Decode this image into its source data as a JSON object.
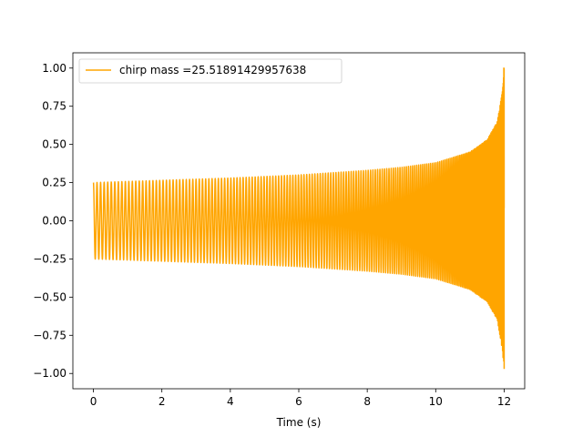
{
  "chart_data": {
    "type": "line",
    "title": "",
    "xlabel": "Time (s)",
    "ylabel": "",
    "xlim": [
      -0.6,
      12.6
    ],
    "ylim": [
      -1.1,
      1.1
    ],
    "x_ticks": [
      0,
      2,
      4,
      6,
      8,
      10,
      12
    ],
    "x_tick_labels": [
      "0",
      "2",
      "4",
      "6",
      "8",
      "10",
      "12"
    ],
    "y_ticks": [
      1.0,
      0.75,
      0.5,
      0.25,
      0.0,
      -0.25,
      -0.5,
      -0.75,
      -1.0
    ],
    "y_tick_labels": [
      "1.00",
      "0.75",
      "0.50",
      "0.25",
      "0.00",
      "−0.25",
      "−0.50",
      "−0.75",
      "−1.00"
    ],
    "grid": false,
    "legend_position": "top-left",
    "series": [
      {
        "name": "chirp mass =25.51891429957638",
        "color": "#ffa500",
        "x_start": 0,
        "x_end": 12.0,
        "envelope": [
          [
            0,
            0.25
          ],
          [
            2,
            0.265
          ],
          [
            4,
            0.28
          ],
          [
            6,
            0.3
          ],
          [
            8,
            0.33
          ],
          [
            9,
            0.35
          ],
          [
            10,
            0.38
          ],
          [
            11,
            0.45
          ],
          [
            11.5,
            0.53
          ],
          [
            11.8,
            0.65
          ],
          [
            11.95,
            0.85
          ],
          [
            12.0,
            1.0
          ]
        ],
        "min_value": -0.97,
        "max_value": 1.0
      }
    ]
  }
}
